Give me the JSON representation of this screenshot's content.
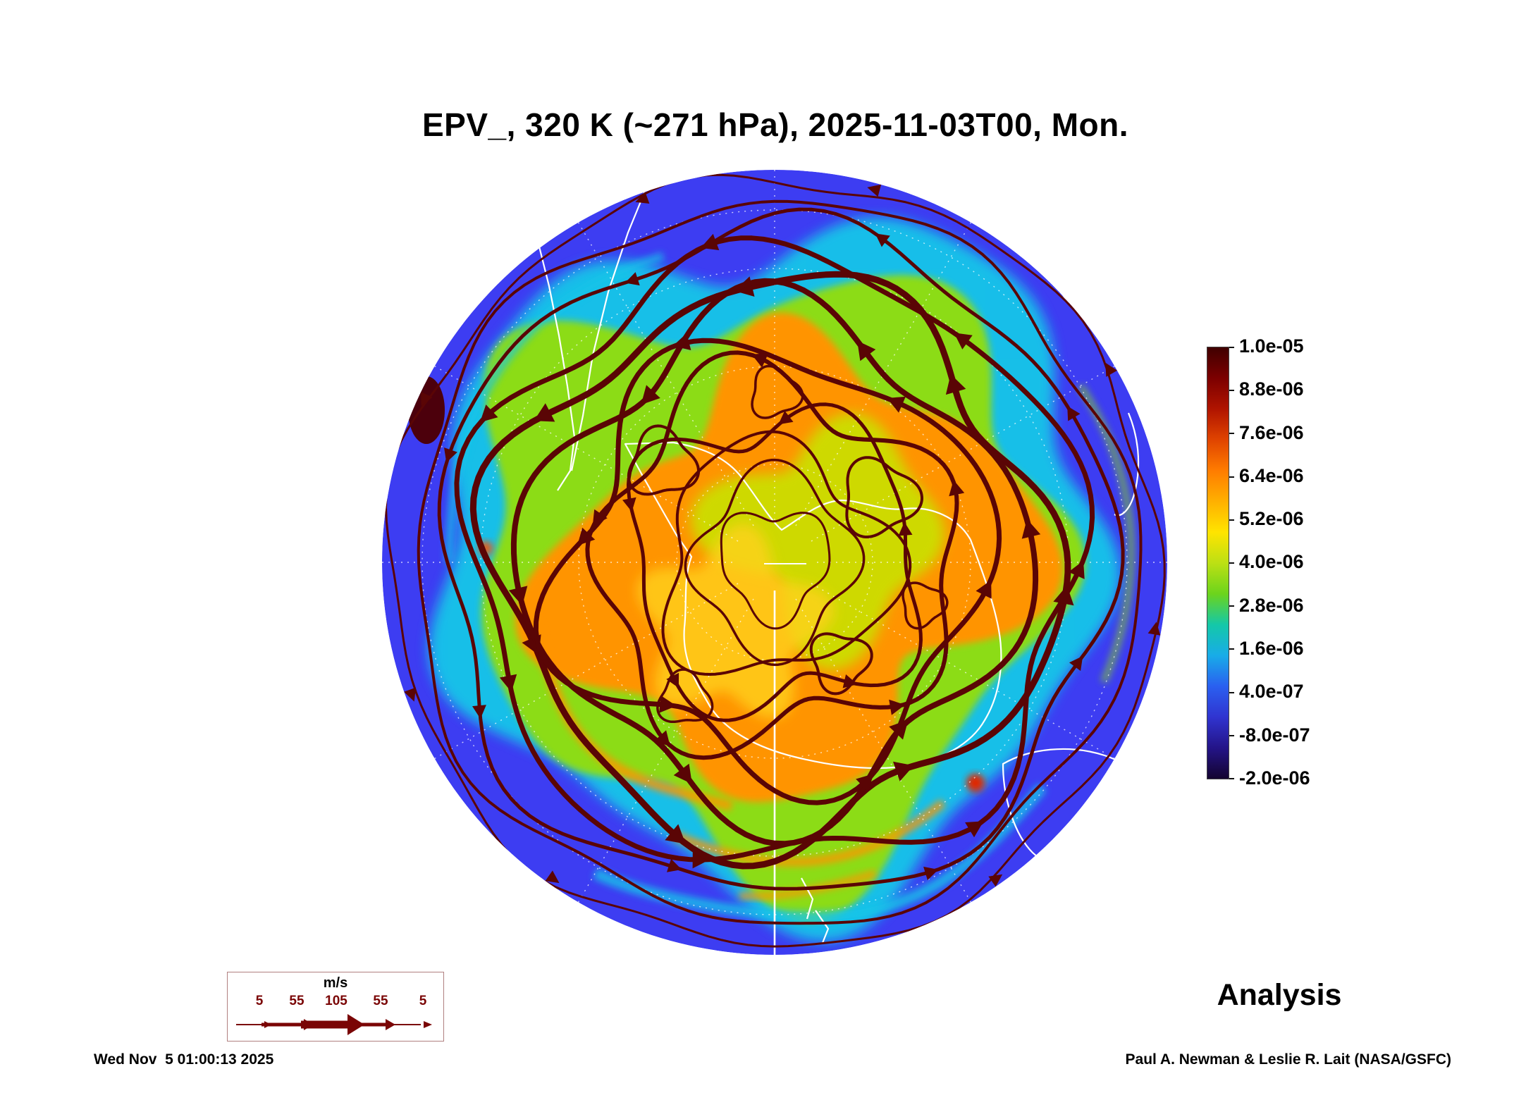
{
  "title": "EPV_, 320 K (~271 hPa), 2025-11-03T00, Mon.",
  "colorbar": {
    "labels": [
      "1.0e-05",
      "8.8e-06",
      "7.6e-06",
      "6.4e-06",
      "5.2e-06",
      "4.0e-06",
      "2.8e-06",
      "1.6e-06",
      "4.0e-07",
      "-8.0e-07",
      "-2.0e-06"
    ],
    "gradient_top_to_bottom": [
      "#400000",
      "#7c0000",
      "#b01400",
      "#e04400",
      "#ff7c00",
      "#ffb000",
      "#ffe400",
      "#bce014",
      "#6cd41c",
      "#14c8a8",
      "#18ace8",
      "#2a60f0",
      "#3034d0",
      "#241488",
      "#140430"
    ]
  },
  "wind_legend": {
    "unit": "m/s",
    "ticks": [
      "5",
      "55",
      "105",
      "55",
      "5"
    ],
    "arrow_color": "#7a0505",
    "border_color": "#b08080"
  },
  "annotation": {
    "analysis": "Analysis"
  },
  "footer": {
    "timestamp": "Wed Nov  5 01:00:13 2025",
    "credit": "Paul A. Newman & Leslie R. Lait (NASA/GSFC)"
  },
  "map_colors": {
    "ocean_blue": "#3d3df2",
    "cyan": "#14c6e8",
    "green": "#8cdc14",
    "green2": "#c6e600",
    "orange": "#ff9400",
    "yellow": "#ffd21c",
    "red_spot": "#e02800",
    "stream_maroon": "#5a0505",
    "dark_blob": "#4c000c",
    "coast": "#ffffff",
    "graticule": "#ffffff"
  }
}
